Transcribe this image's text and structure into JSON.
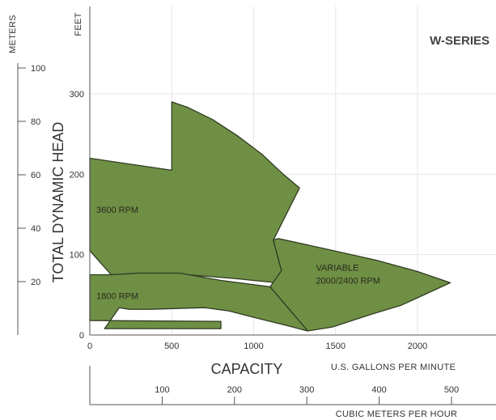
{
  "chart_data": {
    "type": "area",
    "title": "W-SERIES",
    "xlabel": "CAPACITY",
    "x_units": "U.S. GALLONS PER MINUTE",
    "x2_units": "CUBIC METERS PER HOUR",
    "ylabel": "TOTAL DYNAMIC HEAD",
    "y_units": "FEET",
    "y2_units": "METERS",
    "xlim": [
      0,
      2500
    ],
    "ylim": [
      0,
      330
    ],
    "x_ticks": [
      "0",
      "500",
      "1000",
      "1500",
      "2000"
    ],
    "y_ticks": [
      "0",
      "100",
      "200",
      "300"
    ],
    "x2_ticks": [
      "100",
      "200",
      "300",
      "400",
      "500"
    ],
    "y2_ticks": [
      "20",
      "40",
      "60",
      "80",
      "100"
    ],
    "grid": true,
    "fill_color": "#6f8f45",
    "series": [
      {
        "name": "3600 RPM",
        "polygon": [
          [
            0,
            220
          ],
          [
            500,
            205
          ],
          [
            500,
            290
          ],
          [
            600,
            283
          ],
          [
            750,
            268
          ],
          [
            900,
            248
          ],
          [
            1050,
            225
          ],
          [
            1180,
            200
          ],
          [
            1280,
            183
          ],
          [
            1120,
            118
          ],
          [
            1170,
            80
          ],
          [
            1140,
            65
          ],
          [
            900,
            70
          ],
          [
            600,
            75
          ],
          [
            300,
            77
          ],
          [
            130,
            75
          ],
          [
            0,
            105
          ]
        ]
      },
      {
        "name": "VARIABLE 2000/2400 RPM",
        "polygon": [
          [
            1150,
            120
          ],
          [
            1420,
            108
          ],
          [
            1750,
            93
          ],
          [
            2000,
            79
          ],
          [
            2200,
            65
          ],
          [
            1900,
            37
          ],
          [
            1720,
            26
          ],
          [
            1480,
            10
          ],
          [
            1330,
            5
          ],
          [
            1100,
            60
          ],
          [
            1170,
            80
          ],
          [
            1120,
            118
          ]
        ]
      },
      {
        "name": "1800 RPM",
        "polygon": [
          [
            0,
            75
          ],
          [
            130,
            75
          ],
          [
            300,
            77
          ],
          [
            550,
            77
          ],
          [
            800,
            68
          ],
          [
            1100,
            60
          ],
          [
            1330,
            5
          ],
          [
            1200,
            12
          ],
          [
            1000,
            22
          ],
          [
            850,
            30
          ],
          [
            700,
            34
          ],
          [
            370,
            32
          ],
          [
            240,
            32
          ],
          [
            180,
            34
          ],
          [
            90,
            8
          ],
          [
            800,
            8
          ],
          [
            800,
            17
          ],
          [
            0,
            18
          ]
        ]
      }
    ],
    "labels": [
      {
        "text": "3600 RPM",
        "x": 40,
        "y": 152
      },
      {
        "text": "1800 RPM",
        "x": 40,
        "y": 45
      },
      {
        "text": "VARIABLE",
        "x": 1380,
        "y": 80
      },
      {
        "text": "2000/2400 RPM",
        "x": 1380,
        "y": 64
      }
    ]
  }
}
